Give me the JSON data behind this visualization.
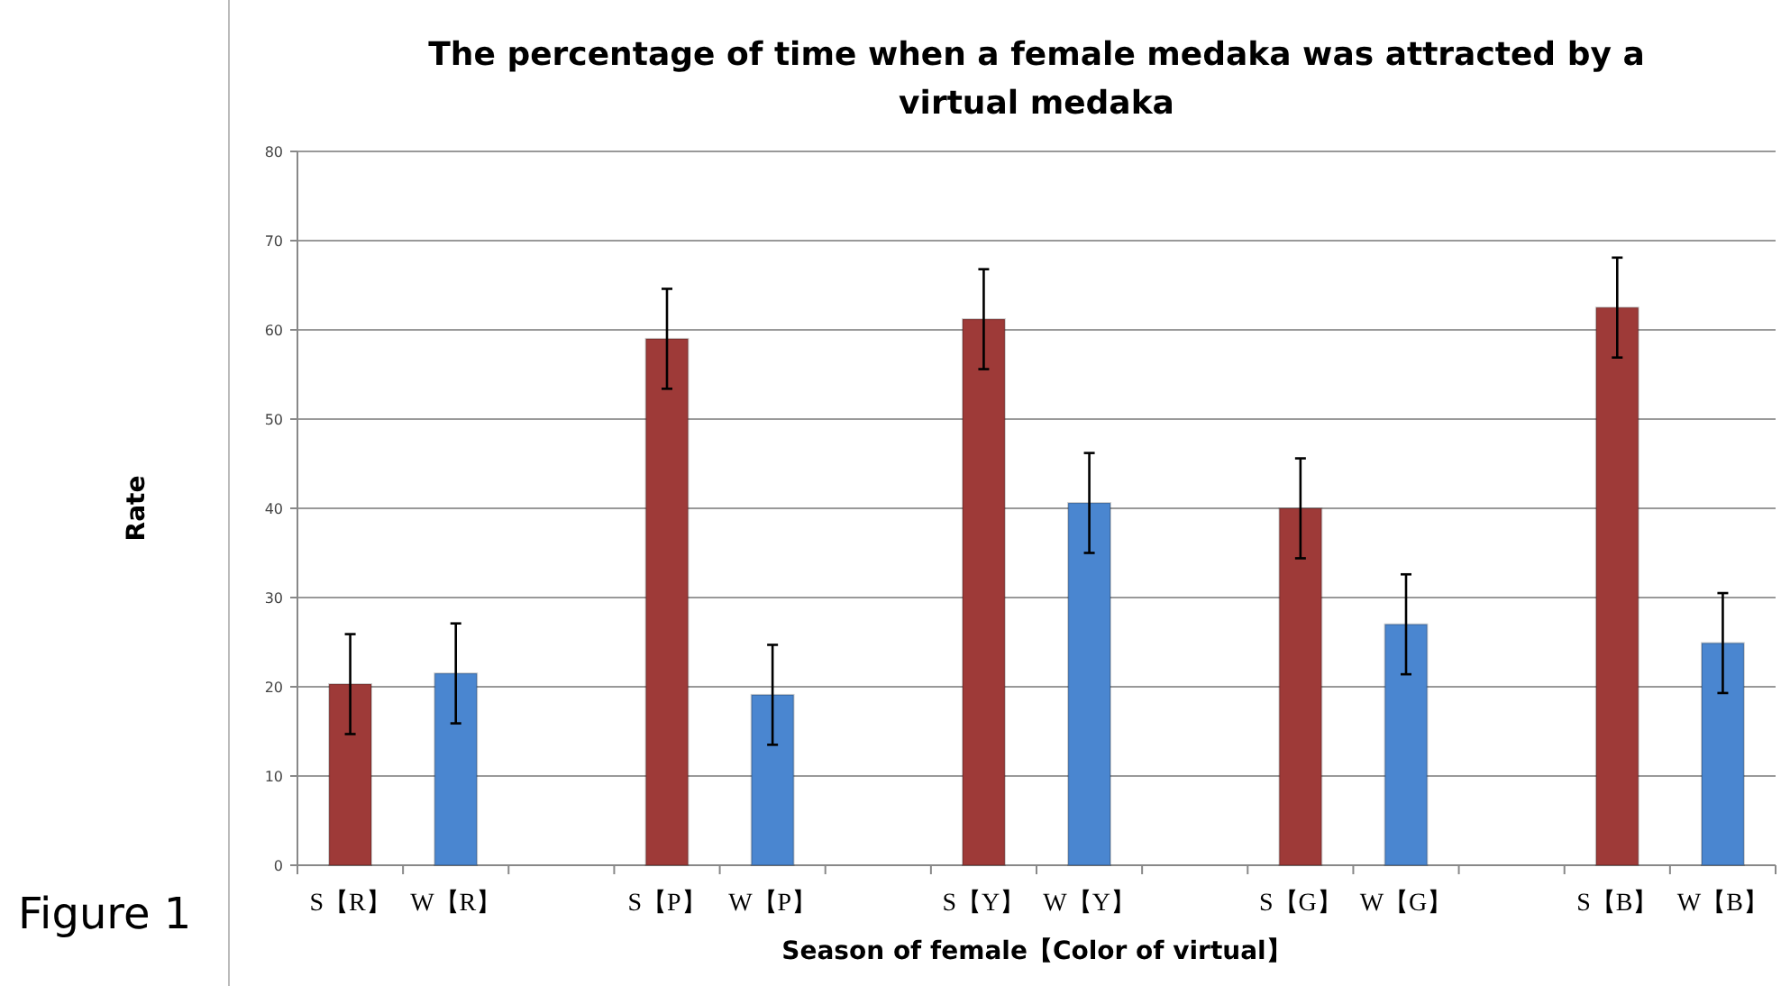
{
  "chart_data": {
    "type": "bar",
    "title": "The percentage of time when a female medaka was attracted by a virtual medaka",
    "xlabel": "Season of female【Color of virtual】",
    "ylabel": "Rate",
    "annotations": [
      "Figure 1"
    ],
    "categories": [
      "S【R】",
      "W【R】",
      null,
      "S【P】",
      "W【P】",
      null,
      "S【Y】",
      "W【Y】",
      null,
      "S【G】",
      "W【G】",
      null,
      "S【B】",
      "W【B】"
    ],
    "values": [
      20.3,
      21.5,
      null,
      59.0,
      19.1,
      null,
      61.2,
      40.6,
      null,
      40.0,
      27.0,
      null,
      62.5,
      24.9
    ],
    "errors": [
      5.6,
      5.6,
      null,
      5.6,
      5.6,
      null,
      5.6,
      5.6,
      null,
      5.6,
      5.6,
      null,
      5.6,
      5.6
    ],
    "colors": [
      "#9e3a38",
      "#4a86d0",
      null,
      "#9e3a38",
      "#4a86d0",
      null,
      "#9e3a38",
      "#4a86d0",
      null,
      "#9e3a38",
      "#4a86d0",
      null,
      "#9e3a38",
      "#4a86d0"
    ],
    "ylim": [
      0,
      80
    ],
    "yticks": [
      0,
      10,
      20,
      30,
      40,
      50,
      60,
      70,
      80
    ],
    "grid": "y"
  }
}
